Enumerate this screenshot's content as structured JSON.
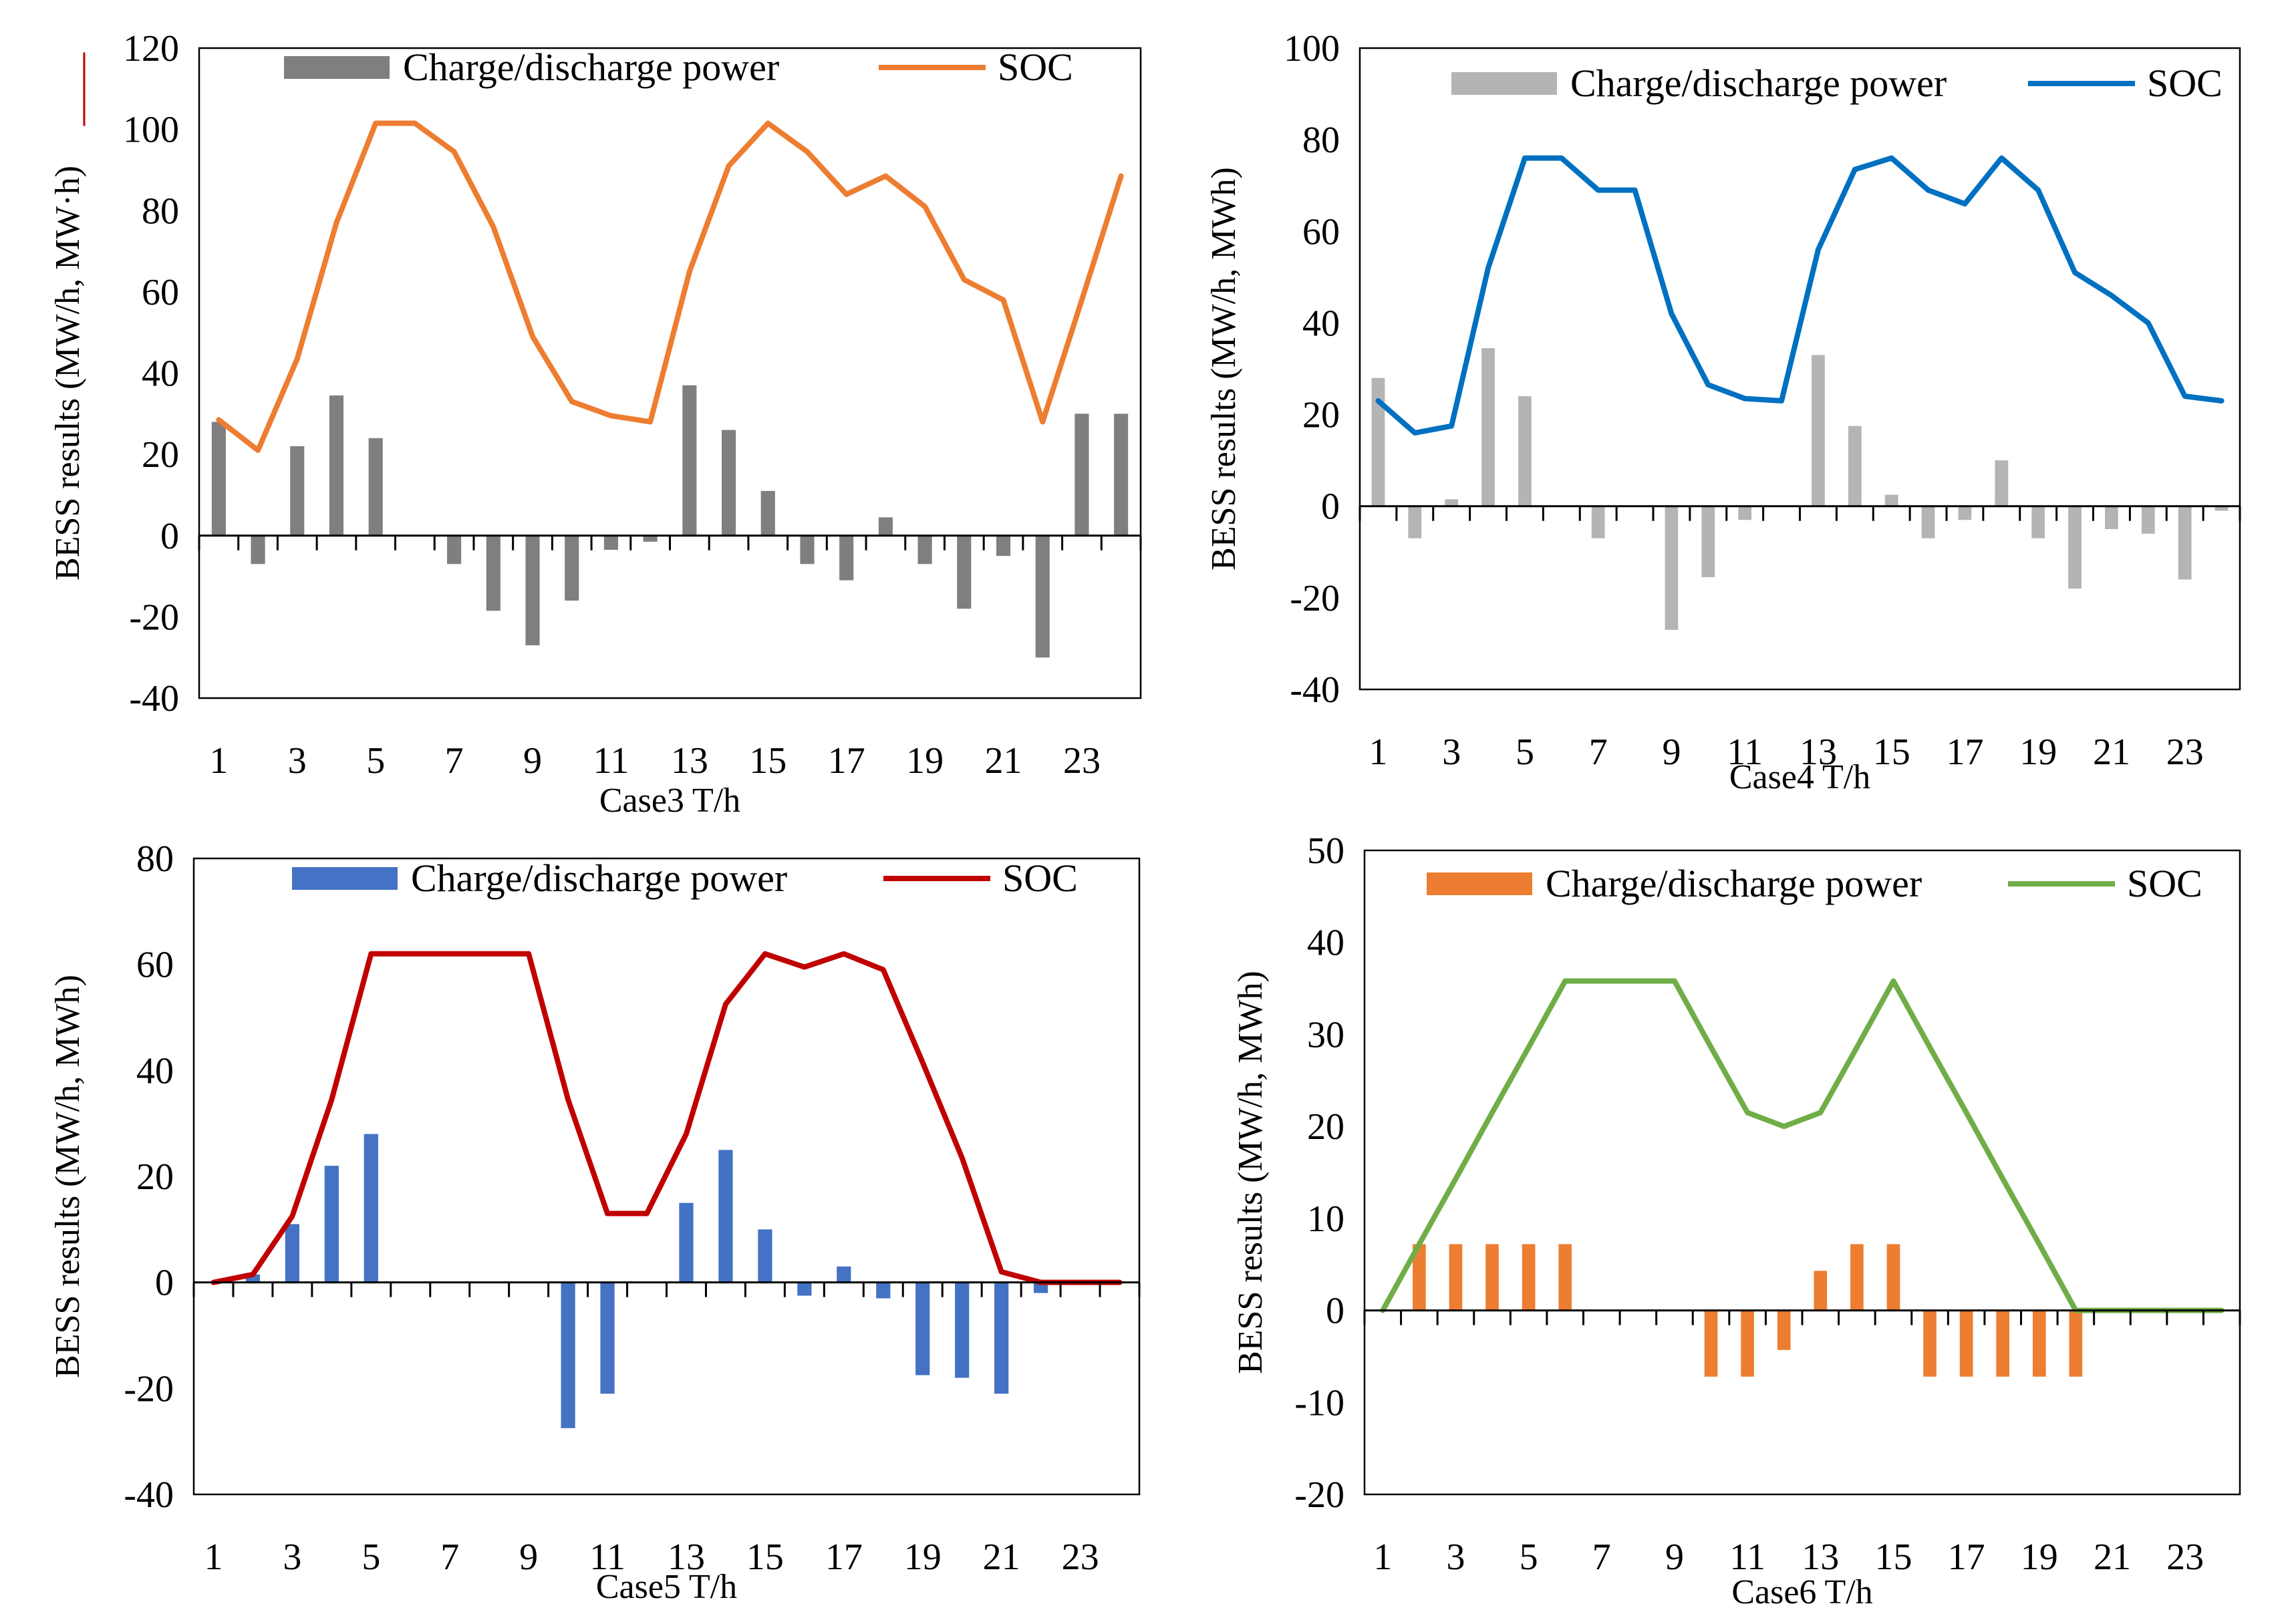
{
  "chart_data": [
    {
      "type": "bar+line",
      "title": "",
      "xlabel": "Case3 T/h",
      "ylabel": "BESS results (MW/h, MW·h)",
      "ylim": [
        -40,
        120
      ],
      "yticks": [
        -40,
        -20,
        0,
        20,
        40,
        60,
        80,
        100,
        120
      ],
      "x": [
        1,
        2,
        3,
        4,
        5,
        6,
        7,
        8,
        9,
        10,
        11,
        12,
        13,
        14,
        15,
        16,
        17,
        18,
        19,
        20,
        21,
        22,
        23,
        24
      ],
      "xtick_labels": [
        "1",
        "3",
        "5",
        "7",
        "9",
        "11",
        "13",
        "15",
        "17",
        "19",
        "21",
        "23"
      ],
      "legend": [
        "Charge/discharge power",
        "SOC"
      ],
      "legend_position": "top",
      "colors": {
        "bar": "#7f7f7f",
        "line": "#ed7d31",
        "ylabel_underline": "#c00000"
      },
      "series": [
        {
          "name": "Charge/discharge power",
          "kind": "bar",
          "values": [
            28,
            -7,
            22,
            34.5,
            24,
            0,
            -7,
            -18.5,
            -27,
            -16,
            -3.5,
            -1.5,
            37,
            26,
            11,
            -7,
            -11,
            4.5,
            -7,
            -18,
            -5,
            -30,
            30,
            30
          ]
        },
        {
          "name": "SOC",
          "kind": "line",
          "values": [
            28.5,
            21,
            43.5,
            77,
            101.5,
            101.5,
            94.5,
            76,
            49,
            33,
            29.5,
            28,
            65,
            91,
            101.5,
            94.5,
            84,
            88.5,
            81,
            63,
            58,
            28,
            58,
            88.5
          ]
        }
      ]
    },
    {
      "type": "bar+line",
      "title": "",
      "xlabel": "Case4 T/h",
      "ylabel": "BESS results (MW/h, MWh)",
      "ylim": [
        -40,
        100
      ],
      "yticks": [
        -40,
        -20,
        0,
        20,
        40,
        60,
        80,
        100
      ],
      "x": [
        1,
        2,
        3,
        4,
        5,
        6,
        7,
        8,
        9,
        10,
        11,
        12,
        13,
        14,
        15,
        16,
        17,
        18,
        19,
        20,
        21,
        22,
        23,
        24
      ],
      "xtick_labels": [
        "1",
        "3",
        "5",
        "7",
        "9",
        "11",
        "13",
        "15",
        "17",
        "19",
        "21",
        "23"
      ],
      "legend": [
        "Charge/discharge power",
        "SOC"
      ],
      "legend_position": "top",
      "colors": {
        "bar": "#b4b4b4",
        "line": "#0070c0"
      },
      "series": [
        {
          "name": "Charge/discharge power",
          "kind": "bar",
          "values": [
            28,
            -7,
            1.5,
            34.5,
            24,
            0,
            -7,
            0,
            -27,
            -15.5,
            -3,
            0,
            33,
            17.5,
            2.5,
            -7,
            -3,
            10,
            -7,
            -18,
            -5,
            -6,
            -16,
            -1
          ]
        },
        {
          "name": "SOC",
          "kind": "line",
          "values": [
            23,
            16,
            17.5,
            52,
            76,
            76,
            69,
            69,
            42,
            26.5,
            23.5,
            23,
            56,
            73.5,
            76,
            69,
            66,
            76,
            69,
            51,
            46,
            40,
            24,
            23
          ]
        }
      ]
    },
    {
      "type": "bar+line",
      "title": "",
      "xlabel": "Case5 T/h",
      "ylabel": "BESS results (MW/h, MWh)",
      "ylim": [
        -40,
        80
      ],
      "yticks": [
        -40,
        -20,
        0,
        20,
        40,
        60,
        80
      ],
      "x": [
        1,
        2,
        3,
        4,
        5,
        6,
        7,
        8,
        9,
        10,
        11,
        12,
        13,
        14,
        15,
        16,
        17,
        18,
        19,
        20,
        21,
        22,
        23,
        24
      ],
      "xtick_labels": [
        "1",
        "3",
        "5",
        "7",
        "9",
        "11",
        "13",
        "15",
        "17",
        "19",
        "21",
        "23"
      ],
      "legend": [
        "Charge/discharge power",
        "SOC"
      ],
      "legend_position": "top",
      "colors": {
        "bar": "#4472c4",
        "line": "#c00000"
      },
      "series": [
        {
          "name": "Charge/discharge power",
          "kind": "bar",
          "values": [
            0,
            1.5,
            11,
            22,
            28,
            0,
            0,
            0,
            0,
            -27.5,
            -21,
            0,
            15,
            25,
            10,
            -2.5,
            3,
            -3,
            -17.5,
            -18,
            -21,
            -2,
            0,
            0
          ]
        },
        {
          "name": "SOC",
          "kind": "line",
          "values": [
            0,
            1.5,
            12.5,
            34.5,
            62,
            62,
            62,
            62,
            62,
            34.5,
            13,
            13,
            28,
            52.5,
            62,
            59.5,
            62,
            59,
            41.5,
            23.5,
            2,
            0,
            0,
            0
          ]
        }
      ]
    },
    {
      "type": "bar+line",
      "title": "",
      "xlabel": "Case6 T/h",
      "ylabel": "BESS results (MW/h, MWh)",
      "ylim": [
        -20,
        50
      ],
      "yticks": [
        -20,
        -10,
        0,
        10,
        20,
        30,
        40,
        50
      ],
      "x": [
        1,
        2,
        3,
        4,
        5,
        6,
        7,
        8,
        9,
        10,
        11,
        12,
        13,
        14,
        15,
        16,
        17,
        18,
        19,
        20,
        21,
        22,
        23,
        24
      ],
      "xtick_labels": [
        "1",
        "3",
        "5",
        "7",
        "9",
        "11",
        "13",
        "15",
        "17",
        "19",
        "21",
        "23"
      ],
      "legend": [
        "Charge/discharge power",
        "SOC"
      ],
      "legend_position": "top",
      "colors": {
        "bar": "#ed7d31",
        "line": "#70ad47"
      },
      "series": [
        {
          "name": "Charge/discharge power",
          "kind": "bar",
          "values": [
            0,
            7.2,
            7.2,
            7.2,
            7.2,
            7.2,
            0,
            0,
            0,
            -7.2,
            -7.2,
            -4.3,
            4.3,
            7.2,
            7.2,
            -7.2,
            -7.2,
            -7.2,
            -7.2,
            -7.2,
            0,
            0,
            0,
            0
          ]
        },
        {
          "name": "SOC",
          "kind": "line",
          "values": [
            0,
            7.2,
            14.3,
            21.5,
            28.6,
            35.8,
            35.8,
            35.8,
            35.8,
            28.6,
            21.5,
            20,
            21.5,
            28.6,
            35.8,
            28.6,
            21.5,
            14.3,
            7.2,
            0,
            0,
            0,
            0,
            0
          ]
        }
      ]
    }
  ]
}
